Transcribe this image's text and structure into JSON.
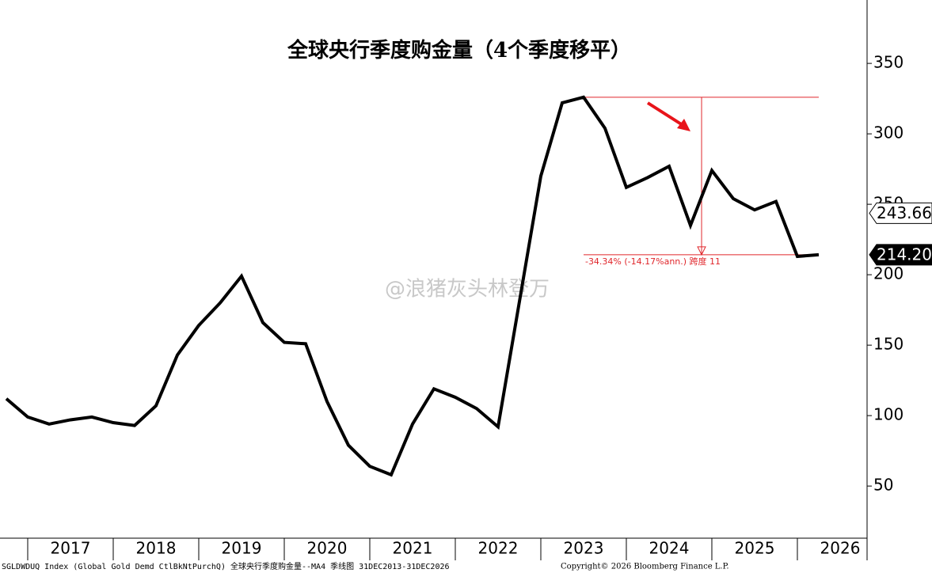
{
  "chart_data": {
    "type": "line",
    "title": "全球央行季度购金量（4个季度移平）",
    "x": [
      2016.75,
      2017,
      2017.25,
      2017.5,
      2017.75,
      2018,
      2018.25,
      2018.5,
      2018.75,
      2019,
      2019.25,
      2019.5,
      2019.75,
      2020,
      2020.25,
      2020.5,
      2020.75,
      2021,
      2021.25,
      2021.5,
      2021.75,
      2022,
      2022.25,
      2022.5,
      2022.75,
      2023,
      2023.25,
      2023.5,
      2023.75,
      2024,
      2024.25,
      2024.5,
      2024.75,
      2025,
      2025.25,
      2025.5,
      2025.75,
      2026,
      2026.25
    ],
    "series": [
      {
        "color": "#000000",
        "values": [
          112,
          99,
          94,
          97,
          99,
          95,
          93,
          107,
          143,
          164,
          180,
          199,
          166,
          152,
          151,
          110,
          79,
          64,
          58,
          94,
          119,
          113,
          105,
          92,
          181,
          270,
          322,
          326,
          304,
          262,
          269,
          277,
          235,
          274,
          254,
          246,
          252,
          213,
          214.2
        ]
      }
    ],
    "xlim": [
      2016.676,
      2026.815
    ],
    "xticks": [
      {
        "value": 2017.5,
        "label": "2017"
      },
      {
        "value": 2018.5,
        "label": "2018"
      },
      {
        "value": 2019.5,
        "label": "2019"
      },
      {
        "value": 2020.5,
        "label": "2020"
      },
      {
        "value": 2021.5,
        "label": "2021"
      },
      {
        "value": 2022.5,
        "label": "2022"
      },
      {
        "value": 2023.5,
        "label": "2023"
      },
      {
        "value": 2024.5,
        "label": "2024"
      },
      {
        "value": 2025.5,
        "label": "2025"
      },
      {
        "value": 2026.5,
        "label": "2026"
      }
    ],
    "ylim": [
      13,
      395
    ],
    "yticks": [
      50,
      100,
      150,
      200,
      250,
      300,
      350
    ],
    "price_markers": [
      {
        "value": 243.66,
        "label": "243.66",
        "style": "outline"
      },
      {
        "value": 214.2,
        "label": "214.20",
        "style": "solid"
      }
    ],
    "measure": {
      "from": 326,
      "to": 214.2,
      "x_from": 2023.5,
      "x_to": 2026.25,
      "x_at": 2024.88,
      "color": "#e0262b",
      "label": "-34.34% (-14.17%ann.) 跨度 11"
    },
    "watermark": "@浪猪灰头林登万",
    "footer_left": "SGLDWDUQ Index (Global Gold Demd CtlBkNtPurchQ) 全球央行季度购金量--MA4 季线图 31DEC2013-31DEC2026",
    "footer_center": "Copyright© 2026 Bloomberg Finance L.P."
  }
}
